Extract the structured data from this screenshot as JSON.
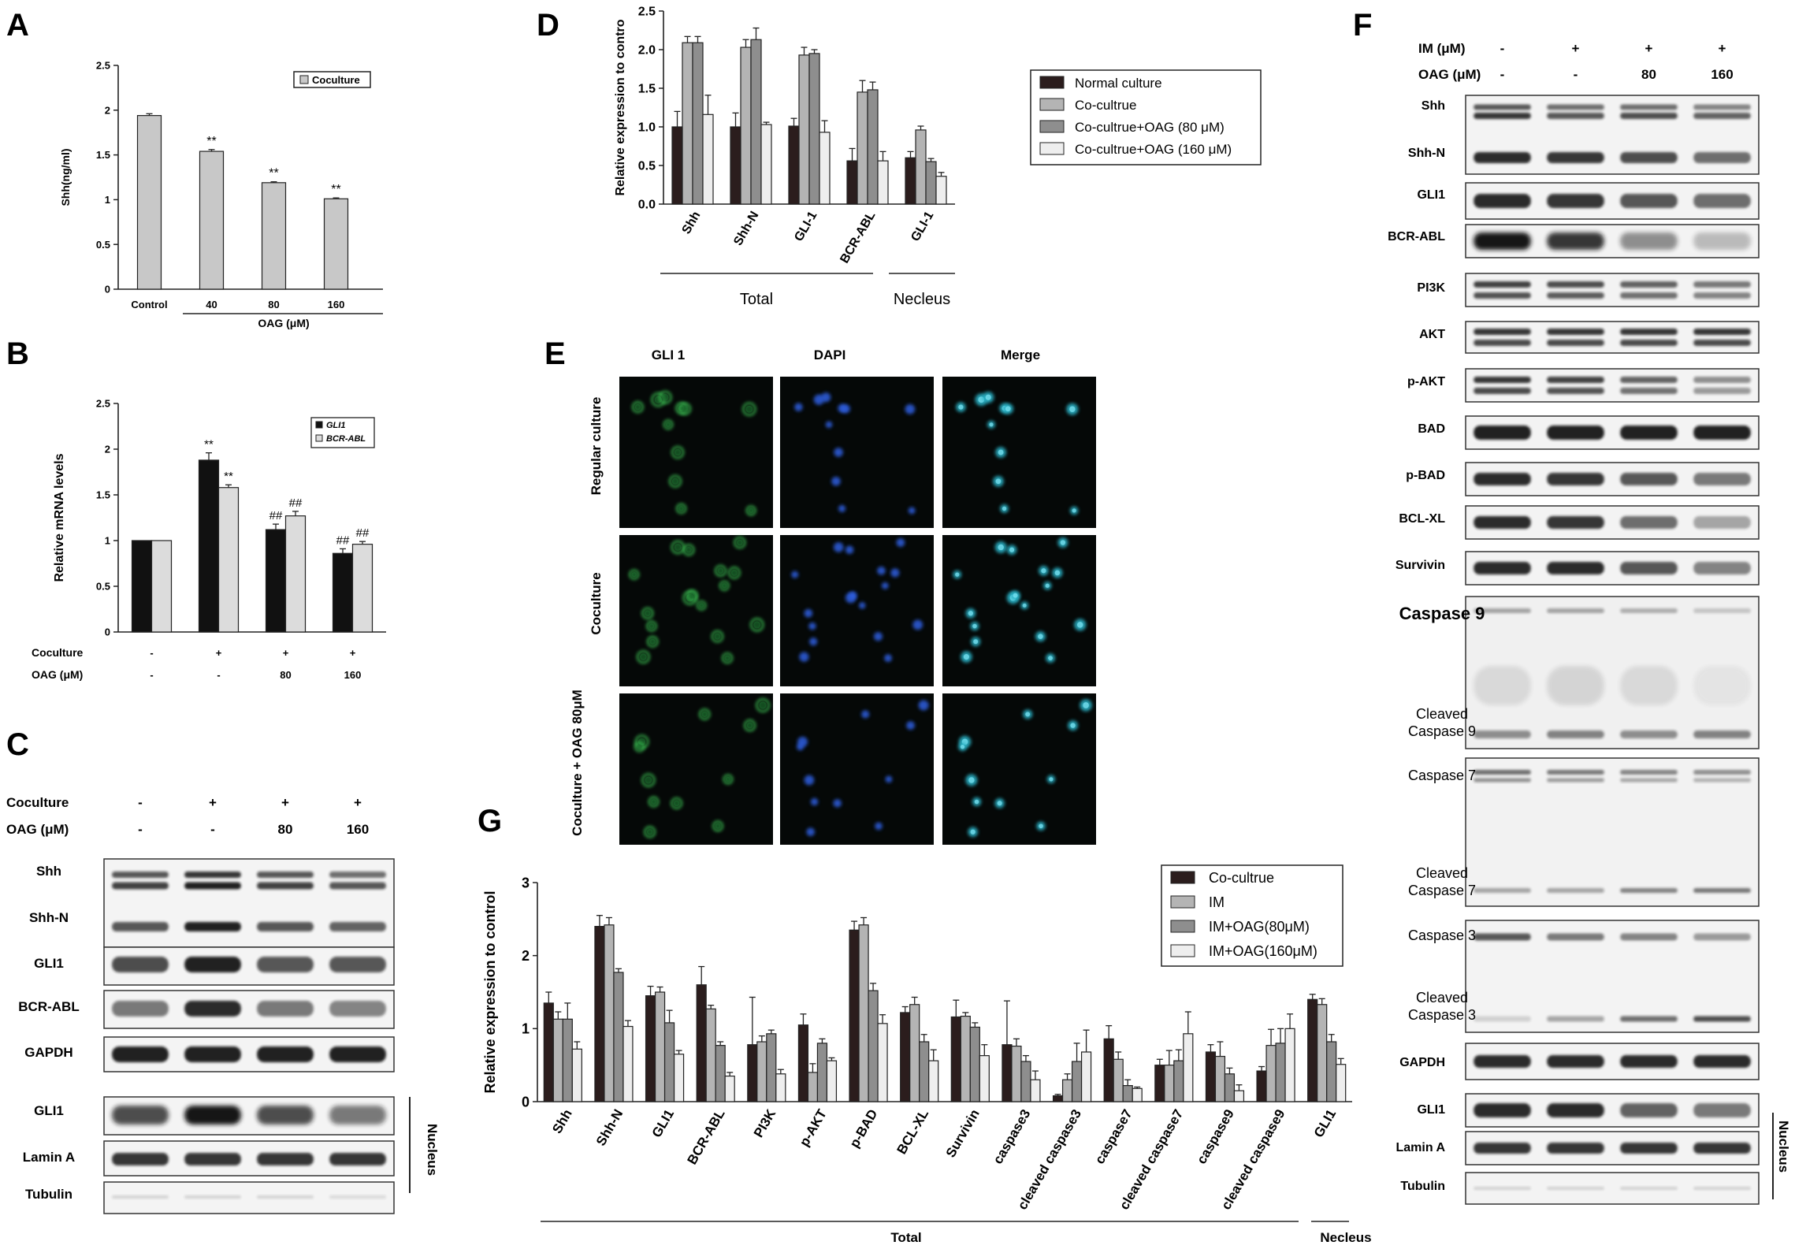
{
  "panels": {
    "A": {
      "letter": "A",
      "legend": "Coculture",
      "xgroup_label": "OAG (μM)",
      "chart_data": {
        "type": "bar",
        "categories": [
          "Control",
          "40",
          "80",
          "160"
        ],
        "values": [
          1.94,
          1.54,
          1.19,
          1.01
        ],
        "errors": [
          0.02,
          0.02,
          0.01,
          0.01
        ],
        "significance": [
          "",
          "**",
          "**",
          "**"
        ],
        "ylabel": "Shh(ng/ml)",
        "ylim": [
          0,
          2.5
        ],
        "yticks": [
          "0",
          "0.5",
          "1",
          "1.5",
          "2",
          "2.5"
        ],
        "color": "#c8c8c8"
      }
    },
    "B": {
      "letter": "B",
      "row_labels": [
        "Coculture",
        "OAG (μM)"
      ],
      "coculture": [
        "-",
        "+",
        "+",
        "+"
      ],
      "oag": [
        "-",
        "-",
        "80",
        "160"
      ],
      "chart_data": {
        "type": "bar",
        "ylabel": "Relative mRNA levels",
        "ylim": [
          0,
          2.5
        ],
        "yticks": [
          "0",
          "0.5",
          "1",
          "1.5",
          "2",
          "2.5"
        ],
        "series": [
          {
            "name": "GLI1",
            "color": "#111111",
            "values": [
              1.0,
              1.88,
              1.12,
              0.86
            ],
            "errors": [
              0,
              0.08,
              0.06,
              0.05
            ],
            "sig": [
              "",
              "**",
              "##",
              "##"
            ]
          },
          {
            "name": "BCR-ABL",
            "color": "#dcdcdc",
            "values": [
              1.0,
              1.58,
              1.27,
              0.96
            ],
            "errors": [
              0,
              0.03,
              0.05,
              0.03
            ],
            "sig": [
              "",
              "**",
              "##",
              "##"
            ]
          }
        ]
      }
    },
    "C": {
      "letter": "C",
      "row_labels": [
        "Coculture",
        "OAG (μM)"
      ],
      "coculture": [
        "-",
        "+",
        "+",
        "+"
      ],
      "oag": [
        "-",
        "-",
        "80",
        "160"
      ],
      "bands": [
        "Shh",
        "Shh-N",
        "GLI1",
        "BCR-ABL",
        "GAPDH",
        "GLI1",
        "Lamin A",
        "Tubulin"
      ],
      "nucleus_label": "Nucleus"
    },
    "D": {
      "letter": "D",
      "group_labels": [
        "Total",
        "Necleus"
      ],
      "chart_data": {
        "type": "bar",
        "categories": [
          "Shh",
          "Shh-N",
          "GLI-1",
          "BCR-ABL",
          "GLI-1"
        ],
        "ylabel": "Relative expression to contro",
        "ylim": [
          0,
          2.5
        ],
        "yticks": [
          "0.0",
          "0.5",
          "1.0",
          "1.5",
          "2.0",
          "2.5"
        ],
        "series": [
          {
            "name": "Normal culture",
            "color": "#2b1d1d",
            "values": [
              1.0,
              1.0,
              1.01,
              0.56,
              0.6
            ],
            "errors": [
              0.2,
              0.18,
              0.1,
              0.16,
              0.08
            ]
          },
          {
            "name": "Co-cultrue",
            "color": "#b4b4b4",
            "values": [
              2.09,
              2.03,
              1.93,
              1.45,
              0.96
            ],
            "errors": [
              0.08,
              0.1,
              0.1,
              0.15,
              0.05
            ]
          },
          {
            "name": "Co-cultrue+OAG (80 μM)",
            "color": "#8e8e8e",
            "values": [
              2.09,
              2.13,
              1.95,
              1.48,
              0.55
            ],
            "errors": [
              0.08,
              0.15,
              0.05,
              0.1,
              0.04
            ]
          },
          {
            "name": "Co-cultrue+OAG (160 μM)",
            "color": "#eeeeee",
            "values": [
              1.16,
              1.03,
              0.93,
              0.56,
              0.36
            ],
            "errors": [
              0.25,
              0.03,
              0.15,
              0.12,
              0.05
            ]
          }
        ]
      }
    },
    "E": {
      "letter": "E",
      "col_labels": [
        "GLI 1",
        "DAPI",
        "Merge"
      ],
      "row_labels": [
        "Regular culture",
        "Coculture",
        "Coculture + OAG 80μM"
      ]
    },
    "F": {
      "letter": "F",
      "row_labels": [
        "IM (μM)",
        "OAG (μM)"
      ],
      "im": [
        "-",
        "+",
        "+",
        "+"
      ],
      "oag": [
        "-",
        "-",
        "80",
        "160"
      ],
      "bands": [
        "Shh",
        "Shh-N",
        "GLI1",
        "BCR-ABL",
        "PI3K",
        "AKT",
        "p-AKT",
        "BAD",
        "p-BAD",
        "BCL-XL",
        "Survivin"
      ],
      "caspase": [
        "Caspase 9",
        "Cleaved Caspase 9",
        "Caspase 7",
        "Cleaved Caspase 7",
        "Caspase 3",
        "Cleaved Caspase 3"
      ],
      "bottom": [
        "GAPDH",
        "GLI1",
        "Lamin A",
        "Tubulin"
      ],
      "nucleus_label": "Nucleus"
    },
    "G": {
      "letter": "G",
      "group_labels": [
        "Total",
        "Necleus"
      ],
      "chart_data": {
        "type": "bar",
        "categories": [
          "Shh",
          "Shh-N",
          "GLI1",
          "BCR-ABL",
          "PI3K",
          "p-AKT",
          "p-BAD",
          "BCL-XL",
          "Survivin",
          "caspase3",
          "cleaved caspase3",
          "caspase7",
          "cleaved caspase7",
          "caspase9",
          "cleaved caspase9",
          "GLI1"
        ],
        "ylabel": "Relative expression to control",
        "ylim": [
          0,
          3
        ],
        "yticks": [
          "0",
          "1",
          "2",
          "3"
        ],
        "series": [
          {
            "name": "Co-cultrue",
            "color": "#2b1d1d",
            "values": [
              1.35,
              2.4,
              1.45,
              1.6,
              0.78,
              1.05,
              2.35,
              1.22,
              1.16,
              0.78,
              0.08,
              0.86,
              0.5,
              0.68,
              0.42,
              1.4
            ],
            "errors": [
              0.15,
              0.15,
              0.13,
              0.25,
              0.65,
              0.15,
              0.12,
              0.08,
              0.23,
              0.6,
              0.02,
              0.18,
              0.08,
              0.1,
              0.06,
              0.07
            ]
          },
          {
            "name": "IM",
            "color": "#b4b4b4",
            "values": [
              1.13,
              2.42,
              1.5,
              1.27,
              0.82,
              0.4,
              2.42,
              1.33,
              1.17,
              0.76,
              0.3,
              0.58,
              0.5,
              0.62,
              0.77,
              1.33
            ],
            "errors": [
              0.1,
              0.1,
              0.07,
              0.05,
              0.08,
              0.12,
              0.1,
              0.1,
              0.05,
              0.1,
              0.08,
              0.1,
              0.2,
              0.2,
              0.22,
              0.08
            ]
          },
          {
            "name": "IM+OAG(80μM)",
            "color": "#8e8e8e",
            "values": [
              1.13,
              1.77,
              1.08,
              0.77,
              0.93,
              0.8,
              1.52,
              0.82,
              1.02,
              0.55,
              0.55,
              0.22,
              0.56,
              0.38,
              0.8,
              0.82
            ],
            "errors": [
              0.22,
              0.05,
              0.17,
              0.05,
              0.05,
              0.06,
              0.1,
              0.1,
              0.06,
              0.08,
              0.25,
              0.08,
              0.15,
              0.08,
              0.2,
              0.1
            ]
          },
          {
            "name": "IM+OAG(160μM)",
            "color": "#eeeeee",
            "values": [
              0.72,
              1.03,
              0.65,
              0.35,
              0.38,
              0.56,
              1.07,
              0.56,
              0.63,
              0.3,
              0.68,
              0.18,
              0.93,
              0.15,
              1.0,
              0.51
            ],
            "errors": [
              0.1,
              0.08,
              0.05,
              0.05,
              0.06,
              0.04,
              0.12,
              0.15,
              0.15,
              0.12,
              0.3,
              0.02,
              0.3,
              0.08,
              0.2,
              0.08
            ]
          }
        ]
      }
    }
  }
}
